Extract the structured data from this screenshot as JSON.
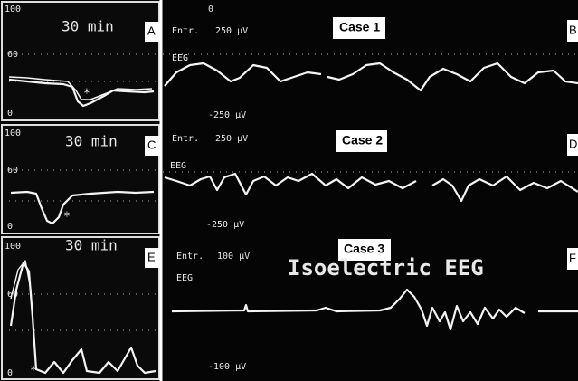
{
  "panels": [
    {
      "letter": "A",
      "title": "30 min",
      "ticks": [
        "100",
        "60",
        "0"
      ],
      "marker": "*"
    },
    {
      "letter": "C",
      "title": "30 min",
      "ticks": [
        "100",
        "60",
        "0"
      ],
      "marker": "*"
    },
    {
      "letter": "E",
      "title": "30 min",
      "ticks": [
        "100",
        "60",
        "0"
      ],
      "marker": "*"
    }
  ],
  "top_zero": "0",
  "eeg": [
    {
      "case": "Case 1",
      "letter": "B",
      "gain": "Entr.",
      "upper": "250 µV",
      "channel": "EEG",
      "lower": "-250 µV"
    },
    {
      "case": "Case 2",
      "letter": "D",
      "gain": "Entr.",
      "upper": "250 µV",
      "channel": "EEG",
      "lower": "-250 µV"
    },
    {
      "case": "Case 3",
      "letter": "F",
      "gain": "Entr.",
      "upper": "100 µV",
      "channel": "EEG",
      "lower": "-100 µV",
      "annotation": "Isoelectric EEG"
    }
  ]
}
